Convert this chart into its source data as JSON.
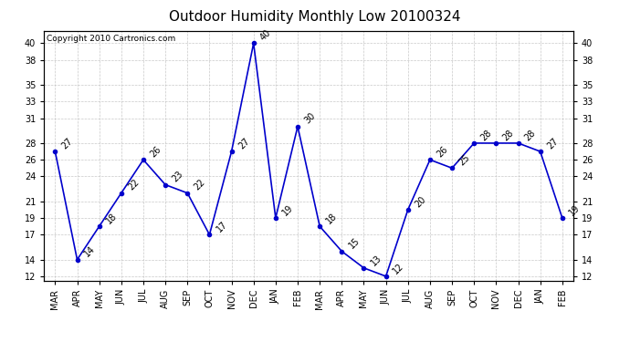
{
  "title": "Outdoor Humidity Monthly Low 20100324",
  "copyright_text": "Copyright 2010 Cartronics.com",
  "months": [
    "MAR",
    "APR",
    "MAY",
    "JUN",
    "JUL",
    "AUG",
    "SEP",
    "OCT",
    "NOV",
    "DEC",
    "JAN",
    "FEB",
    "MAR",
    "APR",
    "MAY",
    "JUN",
    "JUL",
    "AUG",
    "SEP",
    "OCT",
    "NOV",
    "DEC",
    "JAN",
    "FEB"
  ],
  "values": [
    27,
    14,
    18,
    22,
    26,
    23,
    22,
    17,
    27,
    40,
    19,
    30,
    18,
    15,
    13,
    12,
    20,
    26,
    25,
    28,
    28,
    28,
    27,
    19
  ],
  "line_color": "#0000cc",
  "marker_color": "#0000cc",
  "bg_color": "#ffffff",
  "grid_color": "#bbbbbb",
  "yticks": [
    12,
    14,
    17,
    19,
    21,
    24,
    26,
    28,
    31,
    33,
    35,
    38,
    40
  ],
  "ylim": [
    11.5,
    41.5
  ],
  "title_fontsize": 11,
  "label_fontsize": 7,
  "annotation_fontsize": 7
}
